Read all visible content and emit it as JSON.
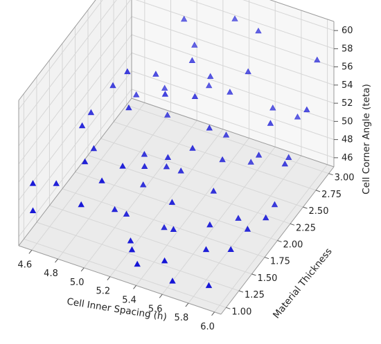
{
  "chart_data": {
    "type": "scatter",
    "marker": "triangle",
    "colors": {
      "marker": "#1414d6",
      "pane": "#f2f2f2",
      "grid": "#d6d6d6",
      "edge": "#9a9a9a",
      "text": "#222222"
    },
    "axes": {
      "x": {
        "label": "Cell Inner Spacing (h)",
        "ticks": [
          "4.6",
          "4.8",
          "5.0",
          "5.2",
          "5.4",
          "5.6",
          "5.8",
          "6.0"
        ],
        "range": [
          4.5,
          6.05
        ]
      },
      "y": {
        "label": "Material Thickness",
        "ticks": [
          "1.00",
          "1.25",
          "1.50",
          "1.75",
          "2.00",
          "2.25",
          "2.50",
          "2.75",
          "3.00"
        ],
        "range": [
          0.9,
          3.1
        ]
      },
      "z": {
        "label": "Cell Corner Angle (teta)",
        "ticks": [
          "46",
          "48",
          "50",
          "52",
          "54",
          "56",
          "58",
          "60"
        ],
        "range": [
          45,
          61
        ]
      }
    },
    "grid": true,
    "points": [
      {
        "x": 4.55,
        "y": 1.05,
        "z": 51
      },
      {
        "x": 4.55,
        "y": 1.05,
        "z": 48
      },
      {
        "x": 4.65,
        "y": 1.25,
        "z": 50
      },
      {
        "x": 4.75,
        "y": 1.5,
        "z": 55
      },
      {
        "x": 4.8,
        "y": 1.6,
        "z": 52
      },
      {
        "x": 4.85,
        "y": 1.3,
        "z": 53
      },
      {
        "x": 4.9,
        "y": 2.0,
        "z": 58
      },
      {
        "x": 4.95,
        "y": 1.9,
        "z": 55
      },
      {
        "x": 5.0,
        "y": 2.3,
        "z": 56
      },
      {
        "x": 5.0,
        "y": 1.5,
        "z": 47
      },
      {
        "x": 5.05,
        "y": 1.6,
        "z": 46
      },
      {
        "x": 5.1,
        "y": 1.8,
        "z": 48
      },
      {
        "x": 5.1,
        "y": 1.4,
        "z": 53
      },
      {
        "x": 5.15,
        "y": 2.1,
        "z": 56
      },
      {
        "x": 5.2,
        "y": 2.5,
        "z": 57
      },
      {
        "x": 5.25,
        "y": 1.2,
        "z": 46
      },
      {
        "x": 5.3,
        "y": 1.7,
        "z": 45
      },
      {
        "x": 5.3,
        "y": 2.6,
        "z": 55
      },
      {
        "x": 5.35,
        "y": 1.9,
        "z": 50
      },
      {
        "x": 5.4,
        "y": 2.0,
        "z": 52
      },
      {
        "x": 5.45,
        "y": 2.2,
        "z": 53
      },
      {
        "x": 5.45,
        "y": 2.6,
        "z": 54
      },
      {
        "x": 5.5,
        "y": 2.4,
        "z": 51
      },
      {
        "x": 5.55,
        "y": 2.2,
        "z": 50
      },
      {
        "x": 5.6,
        "y": 1.1,
        "z": 45
      },
      {
        "x": 5.65,
        "y": 2.5,
        "z": 48
      },
      {
        "x": 5.7,
        "y": 2.8,
        "z": 52
      },
      {
        "x": 5.75,
        "y": 2.0,
        "z": 46
      },
      {
        "x": 5.8,
        "y": 1.3,
        "z": 44
      },
      {
        "x": 5.85,
        "y": 2.9,
        "z": 51
      },
      {
        "x": 5.9,
        "y": 2.6,
        "z": 49
      },
      {
        "x": 5.95,
        "y": 2.2,
        "z": 47
      },
      {
        "x": 6.0,
        "y": 2.9,
        "z": 58
      },
      {
        "x": 6.0,
        "y": 2.7,
        "z": 54
      },
      {
        "x": 5.55,
        "y": 2.9,
        "z": 59
      },
      {
        "x": 5.35,
        "y": 2.95,
        "z": 59
      },
      {
        "x": 5.0,
        "y": 2.85,
        "z": 58
      },
      {
        "x": 5.2,
        "y": 2.0,
        "z": 49
      },
      {
        "x": 5.25,
        "y": 1.9,
        "z": 51
      },
      {
        "x": 5.05,
        "y": 2.4,
        "z": 51
      },
      {
        "x": 4.95,
        "y": 2.6,
        "z": 52
      },
      {
        "x": 5.4,
        "y": 1.6,
        "z": 49
      },
      {
        "x": 5.45,
        "y": 1.5,
        "z": 47
      },
      {
        "x": 5.6,
        "y": 1.9,
        "z": 49
      },
      {
        "x": 5.65,
        "y": 1.7,
        "z": 47
      },
      {
        "x": 5.7,
        "y": 1.5,
        "z": 46
      },
      {
        "x": 4.7,
        "y": 1.8,
        "z": 54
      },
      {
        "x": 4.75,
        "y": 2.1,
        "z": 55
      },
      {
        "x": 5.1,
        "y": 2.8,
        "z": 56
      },
      {
        "x": 5.3,
        "y": 2.3,
        "z": 55
      },
      {
        "x": 5.5,
        "y": 1.2,
        "z": 46
      },
      {
        "x": 5.75,
        "y": 2.4,
        "z": 50
      },
      {
        "x": 5.9,
        "y": 1.8,
        "z": 47
      },
      {
        "x": 5.2,
        "y": 1.3,
        "z": 46
      },
      {
        "x": 5.15,
        "y": 1.7,
        "z": 51
      },
      {
        "x": 5.05,
        "y": 1.95,
        "z": 50
      },
      {
        "x": 4.85,
        "y": 2.3,
        "z": 53
      },
      {
        "x": 4.9,
        "y": 1.1,
        "z": 50
      },
      {
        "x": 5.0,
        "y": 1.25,
        "z": 52
      },
      {
        "x": 5.25,
        "y": 2.7,
        "z": 53
      },
      {
        "x": 5.35,
        "y": 1.05,
        "z": 46
      },
      {
        "x": 5.55,
        "y": 2.7,
        "z": 56
      },
      {
        "x": 5.8,
        "y": 2.5,
        "z": 53
      },
      {
        "x": 5.85,
        "y": 1.6,
        "z": 46
      },
      {
        "x": 6.0,
        "y": 1.9,
        "z": 48
      },
      {
        "x": 5.95,
        "y": 2.4,
        "z": 50
      }
    ]
  }
}
